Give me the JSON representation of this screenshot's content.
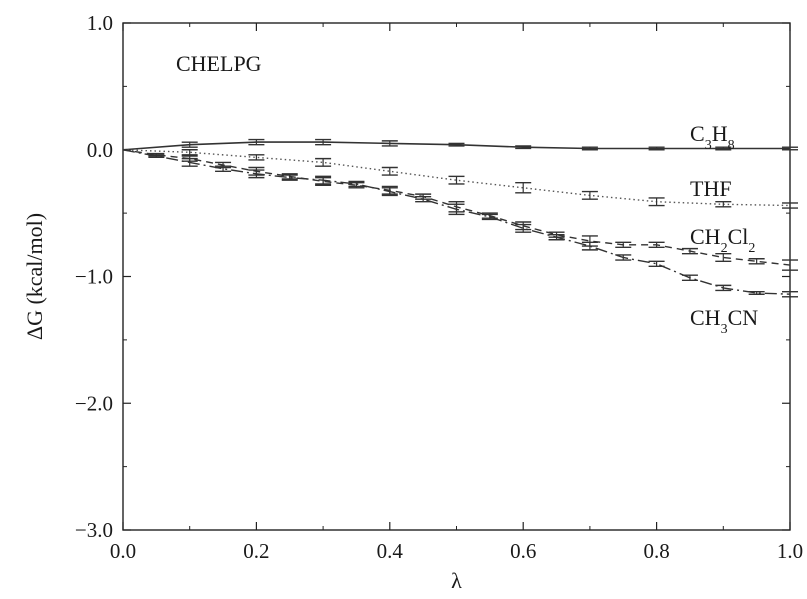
{
  "chart_data": {
    "type": "line",
    "panel_label": "CHELPG",
    "xlabel": "λ",
    "ylabel": "ΔG (kcal/mol)",
    "xlim": [
      0.0,
      1.0
    ],
    "ylim": [
      -3.0,
      1.0
    ],
    "x_ticks": [
      0.0,
      0.2,
      0.4,
      0.6,
      0.8,
      1.0
    ],
    "x_tick_labels": [
      "0.0",
      "0.2",
      "0.4",
      "0.6",
      "0.8",
      "1.0"
    ],
    "y_ticks": [
      1.0,
      0.0,
      -1.0,
      -2.0,
      -3.0
    ],
    "y_tick_labels": [
      "1.0",
      "0.0",
      "−1.0",
      "−2.0",
      "−3.0"
    ],
    "grid": false,
    "legend": "inline labels at right",
    "series": [
      {
        "name": "C3H8",
        "label_parts": [
          {
            "text": "C",
            "sub": false
          },
          {
            "text": "3",
            "sub": true
          },
          {
            "text": "H",
            "sub": false
          },
          {
            "text": "8",
            "sub": true
          }
        ],
        "style": "solid",
        "color": "#333333",
        "x": [
          0.0,
          0.1,
          0.2,
          0.3,
          0.4,
          0.5,
          0.6,
          0.7,
          0.8,
          0.9,
          1.0
        ],
        "y": [
          0.0,
          0.04,
          0.06,
          0.06,
          0.05,
          0.04,
          0.02,
          0.01,
          0.01,
          0.01,
          0.01
        ],
        "err": [
          0.0,
          0.02,
          0.02,
          0.02,
          0.02,
          0.01,
          0.01,
          0.01,
          0.01,
          0.01,
          0.01
        ]
      },
      {
        "name": "THF",
        "label_parts": [
          {
            "text": "THF",
            "sub": false
          }
        ],
        "style": "dotted",
        "color": "#555555",
        "x": [
          0.0,
          0.1,
          0.2,
          0.3,
          0.4,
          0.5,
          0.6,
          0.7,
          0.8,
          0.9,
          1.0
        ],
        "y": [
          0.0,
          -0.02,
          -0.06,
          -0.1,
          -0.17,
          -0.24,
          -0.3,
          -0.36,
          -0.41,
          -0.43,
          -0.44
        ],
        "err": [
          0.0,
          0.02,
          0.02,
          0.03,
          0.03,
          0.03,
          0.04,
          0.03,
          0.03,
          0.02,
          0.02
        ]
      },
      {
        "name": "CH2Cl2",
        "label_parts": [
          {
            "text": "CH",
            "sub": false
          },
          {
            "text": "2",
            "sub": true
          },
          {
            "text": "Cl",
            "sub": false
          },
          {
            "text": "2",
            "sub": true
          }
        ],
        "style": "dashed",
        "color": "#333333",
        "x": [
          0.0,
          0.05,
          0.1,
          0.15,
          0.2,
          0.25,
          0.3,
          0.35,
          0.4,
          0.45,
          0.5,
          0.55,
          0.6,
          0.65,
          0.7,
          0.75,
          0.8,
          0.85,
          0.9,
          0.95,
          1.0
        ],
        "y": [
          0.0,
          -0.04,
          -0.07,
          -0.12,
          -0.17,
          -0.21,
          -0.25,
          -0.28,
          -0.32,
          -0.37,
          -0.45,
          -0.52,
          -0.6,
          -0.67,
          -0.72,
          -0.75,
          -0.75,
          -0.8,
          -0.85,
          -0.88,
          -0.91
        ],
        "err": [
          0.0,
          0.01,
          0.02,
          0.02,
          0.03,
          0.02,
          0.03,
          0.02,
          0.03,
          0.02,
          0.04,
          0.02,
          0.03,
          0.02,
          0.04,
          0.02,
          0.02,
          0.02,
          0.03,
          0.02,
          0.04
        ]
      },
      {
        "name": "CH3CN",
        "label_parts": [
          {
            "text": "CH",
            "sub": false
          },
          {
            "text": "3",
            "sub": true
          },
          {
            "text": "CN",
            "sub": false
          }
        ],
        "style": "dashdot",
        "color": "#333333",
        "x": [
          0.0,
          0.05,
          0.1,
          0.15,
          0.2,
          0.25,
          0.3,
          0.35,
          0.4,
          0.45,
          0.5,
          0.55,
          0.6,
          0.65,
          0.7,
          0.75,
          0.8,
          0.85,
          0.9,
          0.95,
          1.0
        ],
        "y": [
          0.0,
          -0.05,
          -0.1,
          -0.15,
          -0.19,
          -0.22,
          -0.24,
          -0.27,
          -0.33,
          -0.39,
          -0.47,
          -0.53,
          -0.62,
          -0.69,
          -0.76,
          -0.85,
          -0.9,
          -1.01,
          -1.09,
          -1.13,
          -1.14
        ],
        "err": [
          0.0,
          0.01,
          0.03,
          0.02,
          0.03,
          0.02,
          0.03,
          0.02,
          0.03,
          0.02,
          0.04,
          0.02,
          0.03,
          0.02,
          0.03,
          0.02,
          0.02,
          0.02,
          0.02,
          0.01,
          0.02
        ]
      }
    ]
  }
}
